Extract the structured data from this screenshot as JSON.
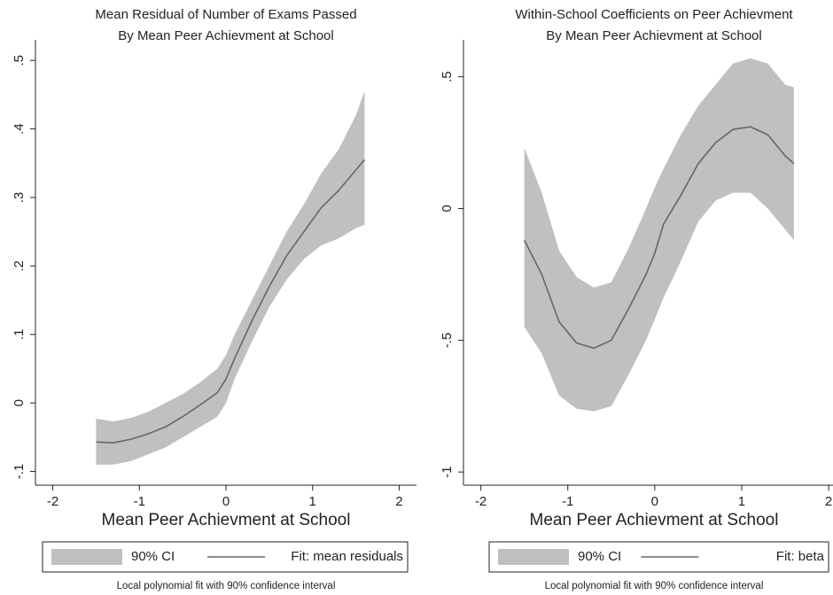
{
  "chart_data": [
    {
      "type": "line",
      "title": [
        "Mean Residual of Number of Exams Passed",
        "By Mean Peer Achievment at School"
      ],
      "xlabel": "Mean Peer Achievment at School",
      "note": "Local polynomial fit with 90% confidence interval",
      "xlim": [
        -2.2,
        2.2
      ],
      "xticks": [
        -2,
        -1,
        0,
        1,
        2
      ],
      "ylim": [
        -0.12,
        0.53
      ],
      "yticks": [
        {
          "value": -0.1,
          "label": "-.1"
        },
        0,
        {
          "value": 0.1,
          "label": ".1"
        },
        {
          "value": 0.2,
          "label": ".2"
        },
        {
          "value": 0.3,
          "label": ".3"
        },
        {
          "value": 0.4,
          "label": ".4"
        },
        {
          "value": 0.5,
          "label": ".5"
        }
      ],
      "x": [
        -1.5,
        -1.3,
        -1.1,
        -0.9,
        -0.7,
        -0.5,
        -0.3,
        -0.1,
        0.0,
        0.1,
        0.3,
        0.5,
        0.7,
        0.9,
        1.1,
        1.3,
        1.5,
        1.6
      ],
      "series": [
        {
          "name": "90% CI",
          "color": "#c0c0c0",
          "lower": [
            -0.09,
            -0.09,
            -0.085,
            -0.075,
            -0.065,
            -0.05,
            -0.035,
            -0.02,
            0.0,
            0.035,
            0.09,
            0.14,
            0.18,
            0.21,
            0.23,
            0.24,
            0.255,
            0.26
          ],
          "upper": [
            -0.023,
            -0.027,
            -0.022,
            -0.013,
            0.0,
            0.013,
            0.03,
            0.05,
            0.07,
            0.1,
            0.15,
            0.2,
            0.25,
            0.29,
            0.335,
            0.37,
            0.42,
            0.455
          ]
        },
        {
          "name": "Fit: mean residuals",
          "color": "#666666",
          "values": [
            -0.057,
            -0.058,
            -0.053,
            -0.045,
            -0.035,
            -0.02,
            -0.003,
            0.015,
            0.035,
            0.065,
            0.12,
            0.17,
            0.215,
            0.25,
            0.285,
            0.31,
            0.34,
            0.355
          ]
        }
      ]
    },
    {
      "type": "line",
      "title": [
        "Within-School Coefficients on Peer Achievment",
        "By Mean Peer Achievment at School"
      ],
      "xlabel": "Mean Peer Achievment at School",
      "note": "Local polynomial fit with 90% confidence interval",
      "xlim": [
        -2.2,
        2.05
      ],
      "xticks": [
        -2,
        -1,
        0,
        1,
        2
      ],
      "ylim": [
        -1.05,
        0.64
      ],
      "yticks": [
        -1,
        {
          "value": -0.5,
          "label": "-.5"
        },
        0,
        {
          "value": 0.5,
          "label": ".5"
        }
      ],
      "x": [
        -1.5,
        -1.3,
        -1.1,
        -0.9,
        -0.7,
        -0.5,
        -0.3,
        -0.1,
        0.0,
        0.1,
        0.3,
        0.5,
        0.7,
        0.9,
        1.1,
        1.3,
        1.5,
        1.6
      ],
      "series": [
        {
          "name": "90% CI",
          "color": "#c0c0c0",
          "lower": [
            -0.45,
            -0.55,
            -0.71,
            -0.76,
            -0.77,
            -0.75,
            -0.63,
            -0.5,
            -0.42,
            -0.34,
            -0.2,
            -0.05,
            0.03,
            0.06,
            0.06,
            0.0,
            -0.08,
            -0.12
          ],
          "upper": [
            0.23,
            0.06,
            -0.16,
            -0.26,
            -0.3,
            -0.28,
            -0.15,
            0.0,
            0.08,
            0.15,
            0.28,
            0.39,
            0.47,
            0.55,
            0.57,
            0.55,
            0.47,
            0.46
          ]
        },
        {
          "name": "Fit: beta",
          "color": "#666666",
          "values": [
            -0.12,
            -0.25,
            -0.43,
            -0.51,
            -0.53,
            -0.5,
            -0.38,
            -0.25,
            -0.17,
            -0.06,
            0.05,
            0.17,
            0.25,
            0.3,
            0.31,
            0.28,
            0.2,
            0.17
          ]
        }
      ]
    }
  ]
}
